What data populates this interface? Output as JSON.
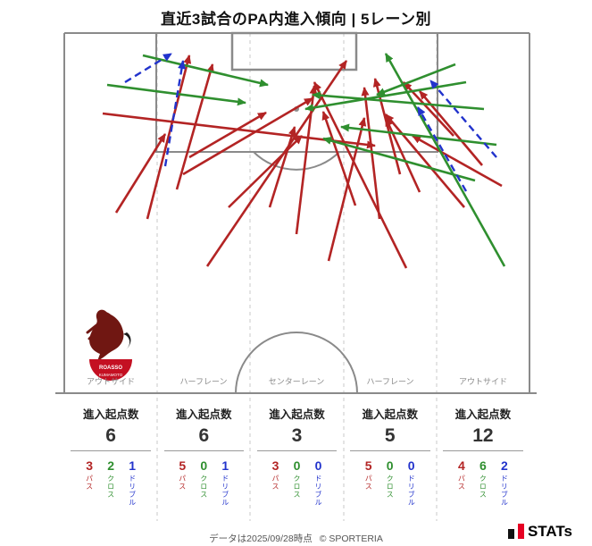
{
  "title": "直近3試合のPA内進入傾向 | 5レーン別",
  "club": {
    "name_top": "ROASSO",
    "name_bottom": "KUMAMOTO"
  },
  "stats": {
    "entries_label": "進入起点数",
    "metric_labels": {
      "pass": "パス",
      "cross": "クロス",
      "dribble": "ドリブル"
    },
    "lanes": [
      {
        "name": "アウトサイド",
        "entries": 6,
        "pass": 3,
        "cross": 2,
        "dribble": 1
      },
      {
        "name": "ハーフレーン",
        "entries": 6,
        "pass": 5,
        "cross": 0,
        "dribble": 1
      },
      {
        "name": "センターレーン",
        "entries": 3,
        "pass": 3,
        "cross": 0,
        "dribble": 0
      },
      {
        "name": "ハーフレーン",
        "entries": 5,
        "pass": 5,
        "cross": 0,
        "dribble": 0
      },
      {
        "name": "アウトサイド",
        "entries": 12,
        "pass": 4,
        "cross": 6,
        "dribble": 2
      }
    ]
  },
  "footer": {
    "note": "データは2025/09/28時点",
    "copyright": "© SPORTERIA",
    "brand": "STATs"
  },
  "colors": {
    "pass": "#b32424",
    "cross": "#2f8f2f",
    "dribble": "#2233cc"
  },
  "chart_data": {
    "type": "pitch-entry-arrow-map",
    "title": "直近3試合のPA内進入傾向 | 5レーン別",
    "lanes": [
      "アウトサイド",
      "ハーフレーン",
      "センターレーン",
      "ハーフレーン",
      "アウトサイド"
    ],
    "entry_origin_counts": [
      6,
      6,
      3,
      5,
      12
    ],
    "series": [
      {
        "name": "パス",
        "type": "pass",
        "color": "#b32424",
        "per_lane": [
          3,
          5,
          3,
          5,
          4
        ]
      },
      {
        "name": "クロス",
        "type": "cross",
        "color": "#2f8f2f",
        "per_lane": [
          2,
          0,
          0,
          0,
          6
        ]
      },
      {
        "name": "ドリブル",
        "type": "dribble",
        "color": "#2233cc",
        "per_lane": [
          1,
          1,
          0,
          0,
          2
        ]
      }
    ],
    "arrows": [
      {
        "type": "pass",
        "from": [
          165,
          245
        ],
        "to": [
          212,
          62
        ]
      },
      {
        "type": "pass",
        "from": [
          130,
          238
        ],
        "to": [
          185,
          150
        ]
      },
      {
        "type": "pass",
        "from": [
          115,
          127
        ],
        "to": [
          420,
          163
        ]
      },
      {
        "type": "pass",
        "from": [
          198,
          212
        ],
        "to": [
          238,
          72
        ]
      },
      {
        "type": "pass",
        "from": [
          232,
          298
        ],
        "to": [
          388,
          68
        ]
      },
      {
        "type": "pass",
        "from": [
          212,
          176
        ],
        "to": [
          298,
          126
        ]
      },
      {
        "type": "pass",
        "from": [
          256,
          232
        ],
        "to": [
          338,
          152
        ]
      },
      {
        "type": "pass",
        "from": [
          205,
          195
        ],
        "to": [
          350,
          110
        ]
      },
      {
        "type": "pass",
        "from": [
          332,
          262
        ],
        "to": [
          352,
          96
        ]
      },
      {
        "type": "pass",
        "from": [
          302,
          232
        ],
        "to": [
          330,
          142
        ]
      },
      {
        "type": "pass",
        "from": [
          368,
          292
        ],
        "to": [
          408,
          132
        ]
      },
      {
        "type": "pass",
        "from": [
          455,
          300
        ],
        "to": [
          352,
          92
        ]
      },
      {
        "type": "pass",
        "from": [
          425,
          245
        ],
        "to": [
          408,
          98
        ]
      },
      {
        "type": "pass",
        "from": [
          470,
          215
        ],
        "to": [
          432,
          132
        ]
      },
      {
        "type": "pass",
        "from": [
          448,
          195
        ],
        "to": [
          420,
          88
        ]
      },
      {
        "type": "pass",
        "from": [
          398,
          230
        ],
        "to": [
          362,
          125
        ]
      },
      {
        "type": "pass",
        "from": [
          520,
          232
        ],
        "to": [
          432,
          128
        ]
      },
      {
        "type": "pass",
        "from": [
          562,
          208
        ],
        "to": [
          462,
          152
        ]
      },
      {
        "type": "pass",
        "from": [
          540,
          185
        ],
        "to": [
          470,
          102
        ]
      },
      {
        "type": "pass",
        "from": [
          508,
          152
        ],
        "to": [
          452,
          92
        ]
      },
      {
        "type": "cross",
        "from": [
          120,
          95
        ],
        "to": [
          275,
          115
        ]
      },
      {
        "type": "cross",
        "from": [
          160,
          62
        ],
        "to": [
          300,
          95
        ]
      },
      {
        "type": "cross",
        "from": [
          565,
          298
        ],
        "to": [
          432,
          60
        ]
      },
      {
        "type": "cross",
        "from": [
          542,
          122
        ],
        "to": [
          350,
          106
        ]
      },
      {
        "type": "cross",
        "from": [
          522,
          92
        ],
        "to": [
          342,
          122
        ]
      },
      {
        "type": "cross",
        "from": [
          556,
          162
        ],
        "to": [
          382,
          142
        ]
      },
      {
        "type": "cross",
        "from": [
          510,
          72
        ],
        "to": [
          422,
          106
        ]
      },
      {
        "type": "cross",
        "from": [
          532,
          202
        ],
        "to": [
          362,
          155
        ]
      },
      {
        "type": "dribble",
        "from": [
          140,
          92
        ],
        "to": [
          192,
          60
        ]
      },
      {
        "type": "dribble",
        "from": [
          185,
          186
        ],
        "to": [
          205,
          68
        ]
      },
      {
        "type": "dribble",
        "from": [
          522,
          214
        ],
        "to": [
          468,
          120
        ]
      },
      {
        "type": "dribble",
        "from": [
          556,
          176
        ],
        "to": [
          482,
          90
        ]
      }
    ]
  }
}
